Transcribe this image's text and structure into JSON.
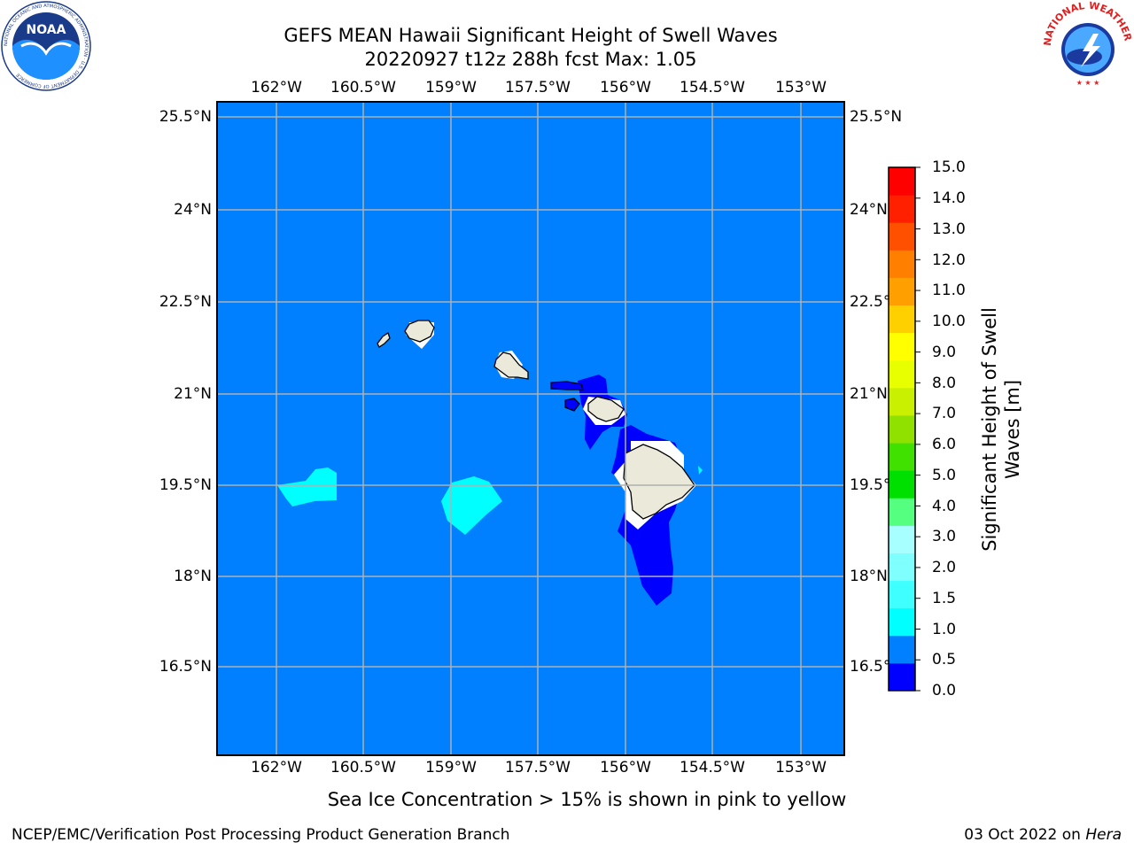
{
  "header": {
    "title_line1": "GEFS MEAN Hawaii Significant Height of Swell Waves",
    "title_line2": "20220927 t12z 288h fcst   Max: 1.05"
  },
  "map": {
    "lon_labels": [
      "162°W",
      "160.5°W",
      "159°W",
      "157.5°W",
      "156°W",
      "154.5°W",
      "153°W"
    ],
    "lat_labels": [
      "25.5°N",
      "24°N",
      "22.5°N",
      "21°N",
      "19.5°N",
      "18°N",
      "16.5°N"
    ],
    "colors": {
      "ocean": "#0080ff",
      "land": "#ebe9da",
      "low_swell": "#0000ff",
      "mid_swell": "#00ffff",
      "grid": "#b0b0b0"
    }
  },
  "colorbar": {
    "title_line1": "Significant Height of Swell",
    "title_line2": "Waves [m]",
    "ticks": [
      "0.0",
      "0.5",
      "1.0",
      "1.5",
      "2.0",
      "3.0",
      "4.0",
      "5.0",
      "6.0",
      "7.0",
      "8.0",
      "9.0",
      "10.0",
      "11.0",
      "12.0",
      "13.0",
      "14.0",
      "15.0"
    ],
    "colors": [
      "#0000ff",
      "#0080ff",
      "#00ffff",
      "#40ffff",
      "#80ffff",
      "#a8ffff",
      "#55ff7f",
      "#00e000",
      "#40e000",
      "#90e000",
      "#c8f000",
      "#e8ff00",
      "#ffff00",
      "#ffd000",
      "#ffa000",
      "#ff8000",
      "#ff5000",
      "#ff2000",
      "#ff0000"
    ]
  },
  "footer": {
    "sea_ice_note": "Sea Ice Concentration > 15% is shown in pink to yellow",
    "branch": "NCEP/EMC/Verification Post Processing Product Generation Branch",
    "date": "03 Oct 2022 on",
    "machine": "Hera"
  },
  "logos": {
    "noaa_text": "NOAA",
    "noaa_ring": "NATIONAL OCEANIC AND ATMOSPHERIC ADMINISTRATION · U.S. DEPARTMENT OF COMMERCE",
    "nws_ring": "NATIONAL WEATHER SERVICE"
  }
}
